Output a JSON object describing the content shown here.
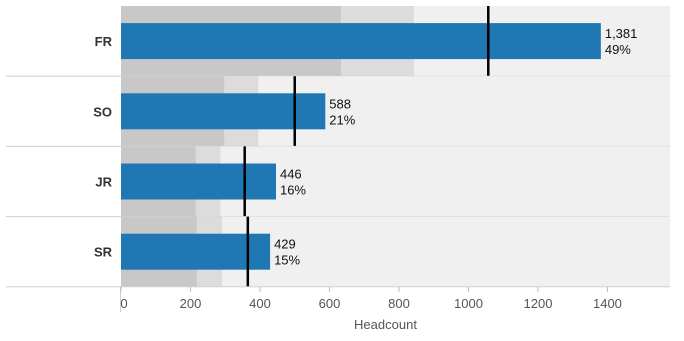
{
  "chart_data": {
    "type": "bar",
    "orientation": "horizontal",
    "subtype": "bullet",
    "categories": [
      "FR",
      "SO",
      "JR",
      "SR"
    ],
    "series": [
      {
        "values": [
          1381,
          588,
          446,
          429
        ]
      }
    ],
    "value_labels": [
      "1,381",
      "588",
      "446",
      "429"
    ],
    "percent_labels": [
      "49%",
      "21%",
      "16%",
      "15%"
    ],
    "targets": [
      1057,
      500,
      356,
      365
    ],
    "bands": [
      {
        "inner": 633,
        "outer": 843
      },
      {
        "inner": 297,
        "outer": 395
      },
      {
        "inner": 215,
        "outer": 286
      },
      {
        "inner": 218,
        "outer": 291
      }
    ],
    "xlabel": "Headcount",
    "xlim": [
      0,
      1580
    ],
    "xticks": [
      0,
      200,
      400,
      600,
      800,
      1000,
      1200,
      1400
    ],
    "colors": {
      "bar": "#1f77b4",
      "band_inner": "#c8c8c8",
      "band_outer": "#dcdcdc",
      "band_background": "#f0f0f0",
      "target": "#000000"
    }
  }
}
